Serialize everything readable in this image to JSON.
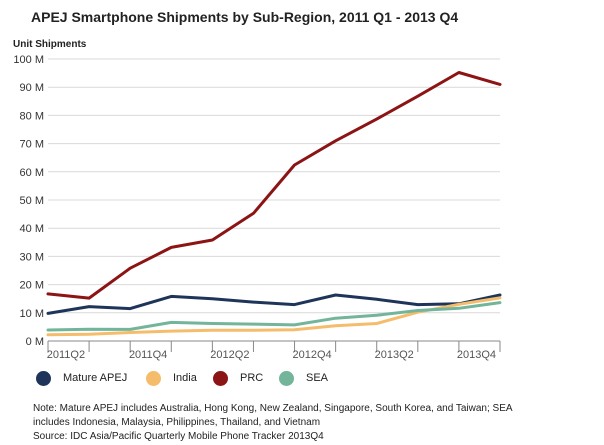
{
  "chart_data": {
    "type": "line",
    "title": "APEJ Smartphone Shipments by Sub-Region, 2011 Q1 - 2013 Q4",
    "ylabel": "Unit Shipments",
    "xlabel": "",
    "x": [
      "2011Q1",
      "2011Q2",
      "2011Q3",
      "2011Q4",
      "2012Q1",
      "2012Q2",
      "2012Q3",
      "2012Q4",
      "2013Q1",
      "2013Q2",
      "2013Q3",
      "2013Q4"
    ],
    "x_tick_labels": [
      "2011Q2",
      "2011Q4",
      "2012Q2",
      "2012Q4",
      "2013Q2",
      "2013Q4"
    ],
    "y_ticks": [
      0,
      10,
      20,
      30,
      40,
      50,
      60,
      70,
      80,
      90,
      100
    ],
    "y_tick_labels": [
      "0 M",
      "10 M",
      "20 M",
      "30 M",
      "40 M",
      "50 M",
      "60 M",
      "70 M",
      "80 M",
      "90 M",
      "100 M"
    ],
    "ylim": [
      0,
      100
    ],
    "grid": "horizontal",
    "legend_position": "bottom",
    "series": [
      {
        "name": "Mature APEJ",
        "color": "#1e3559",
        "values": [
          9.8,
          12.2,
          11.5,
          15.8,
          15.0,
          13.8,
          12.9,
          16.3,
          14.8,
          12.9,
          13.2,
          16.3
        ]
      },
      {
        "name": "India",
        "color": "#f5bd6b",
        "values": [
          2.2,
          2.4,
          3.0,
          3.5,
          3.8,
          3.8,
          4.0,
          5.4,
          6.2,
          10.2,
          13.0,
          15.3
        ]
      },
      {
        "name": "PRC",
        "color": "#8c1414",
        "values": [
          16.7,
          15.2,
          25.8,
          33.2,
          35.8,
          45.3,
          62.4,
          71.0,
          78.7,
          86.8,
          95.2,
          91.0
        ]
      },
      {
        "name": "SEA",
        "color": "#72b59a",
        "values": [
          3.9,
          4.2,
          4.1,
          6.6,
          6.2,
          6.0,
          5.7,
          8.1,
          9.1,
          10.8,
          11.6,
          13.6
        ]
      }
    ]
  },
  "notes": {
    "line1": "Note: Mature APEJ includes Australia, Hong Kong, New Zealand, Singapore, South Korea, and Taiwan; SEA",
    "line2": "includes Indonesia, Malaysia, Philippines, Thailand, and Vietnam",
    "source": "Source: IDC Asia/Pacific Quarterly Mobile Phone Tracker 2013Q4"
  }
}
